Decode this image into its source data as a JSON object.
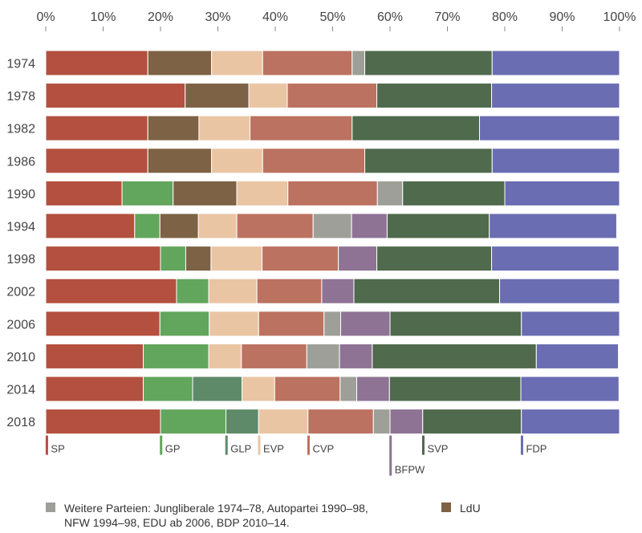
{
  "chart_data": {
    "type": "bar",
    "orientation": "horizontal",
    "stacked": true,
    "x_ticks": [
      "0%",
      "10%",
      "20%",
      "30%",
      "40%",
      "50%",
      "60%",
      "70%",
      "80%",
      "90%",
      "100%"
    ],
    "xlim": [
      0,
      100
    ],
    "categories": [
      "1974",
      "1978",
      "1982",
      "1986",
      "1990",
      "1994",
      "1998",
      "2002",
      "2006",
      "2010",
      "2014",
      "2018"
    ],
    "series": [
      {
        "name": "SP",
        "color": "#b4503f",
        "values": [
          17.8,
          24.3,
          17.8,
          17.8,
          13.3,
          15.5,
          20.0,
          22.8,
          19.9,
          17.0,
          17.0,
          20.0
        ]
      },
      {
        "name": "GP",
        "color": "#62a55c",
        "values": [
          0,
          0,
          0,
          0,
          8.9,
          4.4,
          4.4,
          5.6,
          8.6,
          11.4,
          8.6,
          11.4
        ]
      },
      {
        "name": "GLP",
        "color": "#5e8a6a",
        "values": [
          0,
          0,
          0,
          0,
          0,
          0,
          0,
          0,
          0,
          0,
          8.6,
          5.7
        ]
      },
      {
        "name": "LdU",
        "color": "#7d6245",
        "values": [
          11.1,
          11.1,
          8.9,
          11.1,
          11.1,
          6.7,
          4.4,
          0,
          0,
          0,
          0,
          0
        ]
      },
      {
        "name": "EVP",
        "color": "#eac5a4",
        "values": [
          8.9,
          6.7,
          8.9,
          8.9,
          8.9,
          6.7,
          8.9,
          8.4,
          8.6,
          5.7,
          5.7,
          8.6
        ]
      },
      {
        "name": "CVP",
        "color": "#bc7260",
        "values": [
          15.6,
          15.6,
          17.8,
          17.8,
          15.6,
          13.3,
          13.3,
          11.3,
          11.4,
          11.4,
          11.4,
          11.4
        ]
      },
      {
        "name": "Weitere Parteien",
        "color": "#9f9f99",
        "values": [
          2.2,
          0,
          0,
          0,
          4.4,
          6.7,
          0,
          0,
          2.9,
          5.7,
          2.9,
          2.9
        ]
      },
      {
        "name": "BFPW",
        "color": "#8e7395",
        "values": [
          0,
          0,
          0,
          0,
          0,
          6.2,
          6.7,
          5.6,
          8.6,
          5.7,
          5.7,
          5.7
        ]
      },
      {
        "name": "SVP",
        "color": "#4f6a4c",
        "values": [
          22.2,
          20.0,
          22.2,
          22.2,
          17.8,
          17.8,
          20.0,
          25.4,
          22.9,
          28.6,
          22.9,
          17.2
        ]
      },
      {
        "name": "FDP",
        "color": "#6a6db2",
        "values": [
          22.2,
          22.3,
          24.4,
          22.2,
          20.0,
          22.2,
          22.2,
          20.9,
          17.1,
          14.3,
          17.1,
          17.1
        ]
      }
    ],
    "party_labels": [
      {
        "label": "SP",
        "at": 0.2,
        "color": "#b4503f",
        "low": false
      },
      {
        "label": "GP",
        "at": 20.1,
        "color": "#62a55c",
        "low": false
      },
      {
        "label": "GLP",
        "at": 31.5,
        "color": "#5e8a6a",
        "low": false
      },
      {
        "label": "EVP",
        "at": 37.2,
        "color": "#eac5a4",
        "low": false
      },
      {
        "label": "CVP",
        "at": 45.8,
        "color": "#bc7260",
        "low": false
      },
      {
        "label": "BFPW",
        "at": 60.1,
        "color": "#8e7395",
        "low": true
      },
      {
        "label": "SVP",
        "at": 65.8,
        "color": "#4f6a4c",
        "low": false
      },
      {
        "label": "FDP",
        "at": 83.0,
        "color": "#6a6db2",
        "low": false
      }
    ],
    "grid": true,
    "legend_position": "bottom"
  },
  "footnote": {
    "weitere": {
      "color": "#9f9f99",
      "line1": "Weitere Parteien: Jungliberale 1974–78, Autopartei 1990–98,",
      "line2": "NFW 1994–98, EDU ab 2006, BDP 2010–14."
    },
    "ldu": {
      "color": "#7d6245",
      "label": "LdU"
    }
  }
}
